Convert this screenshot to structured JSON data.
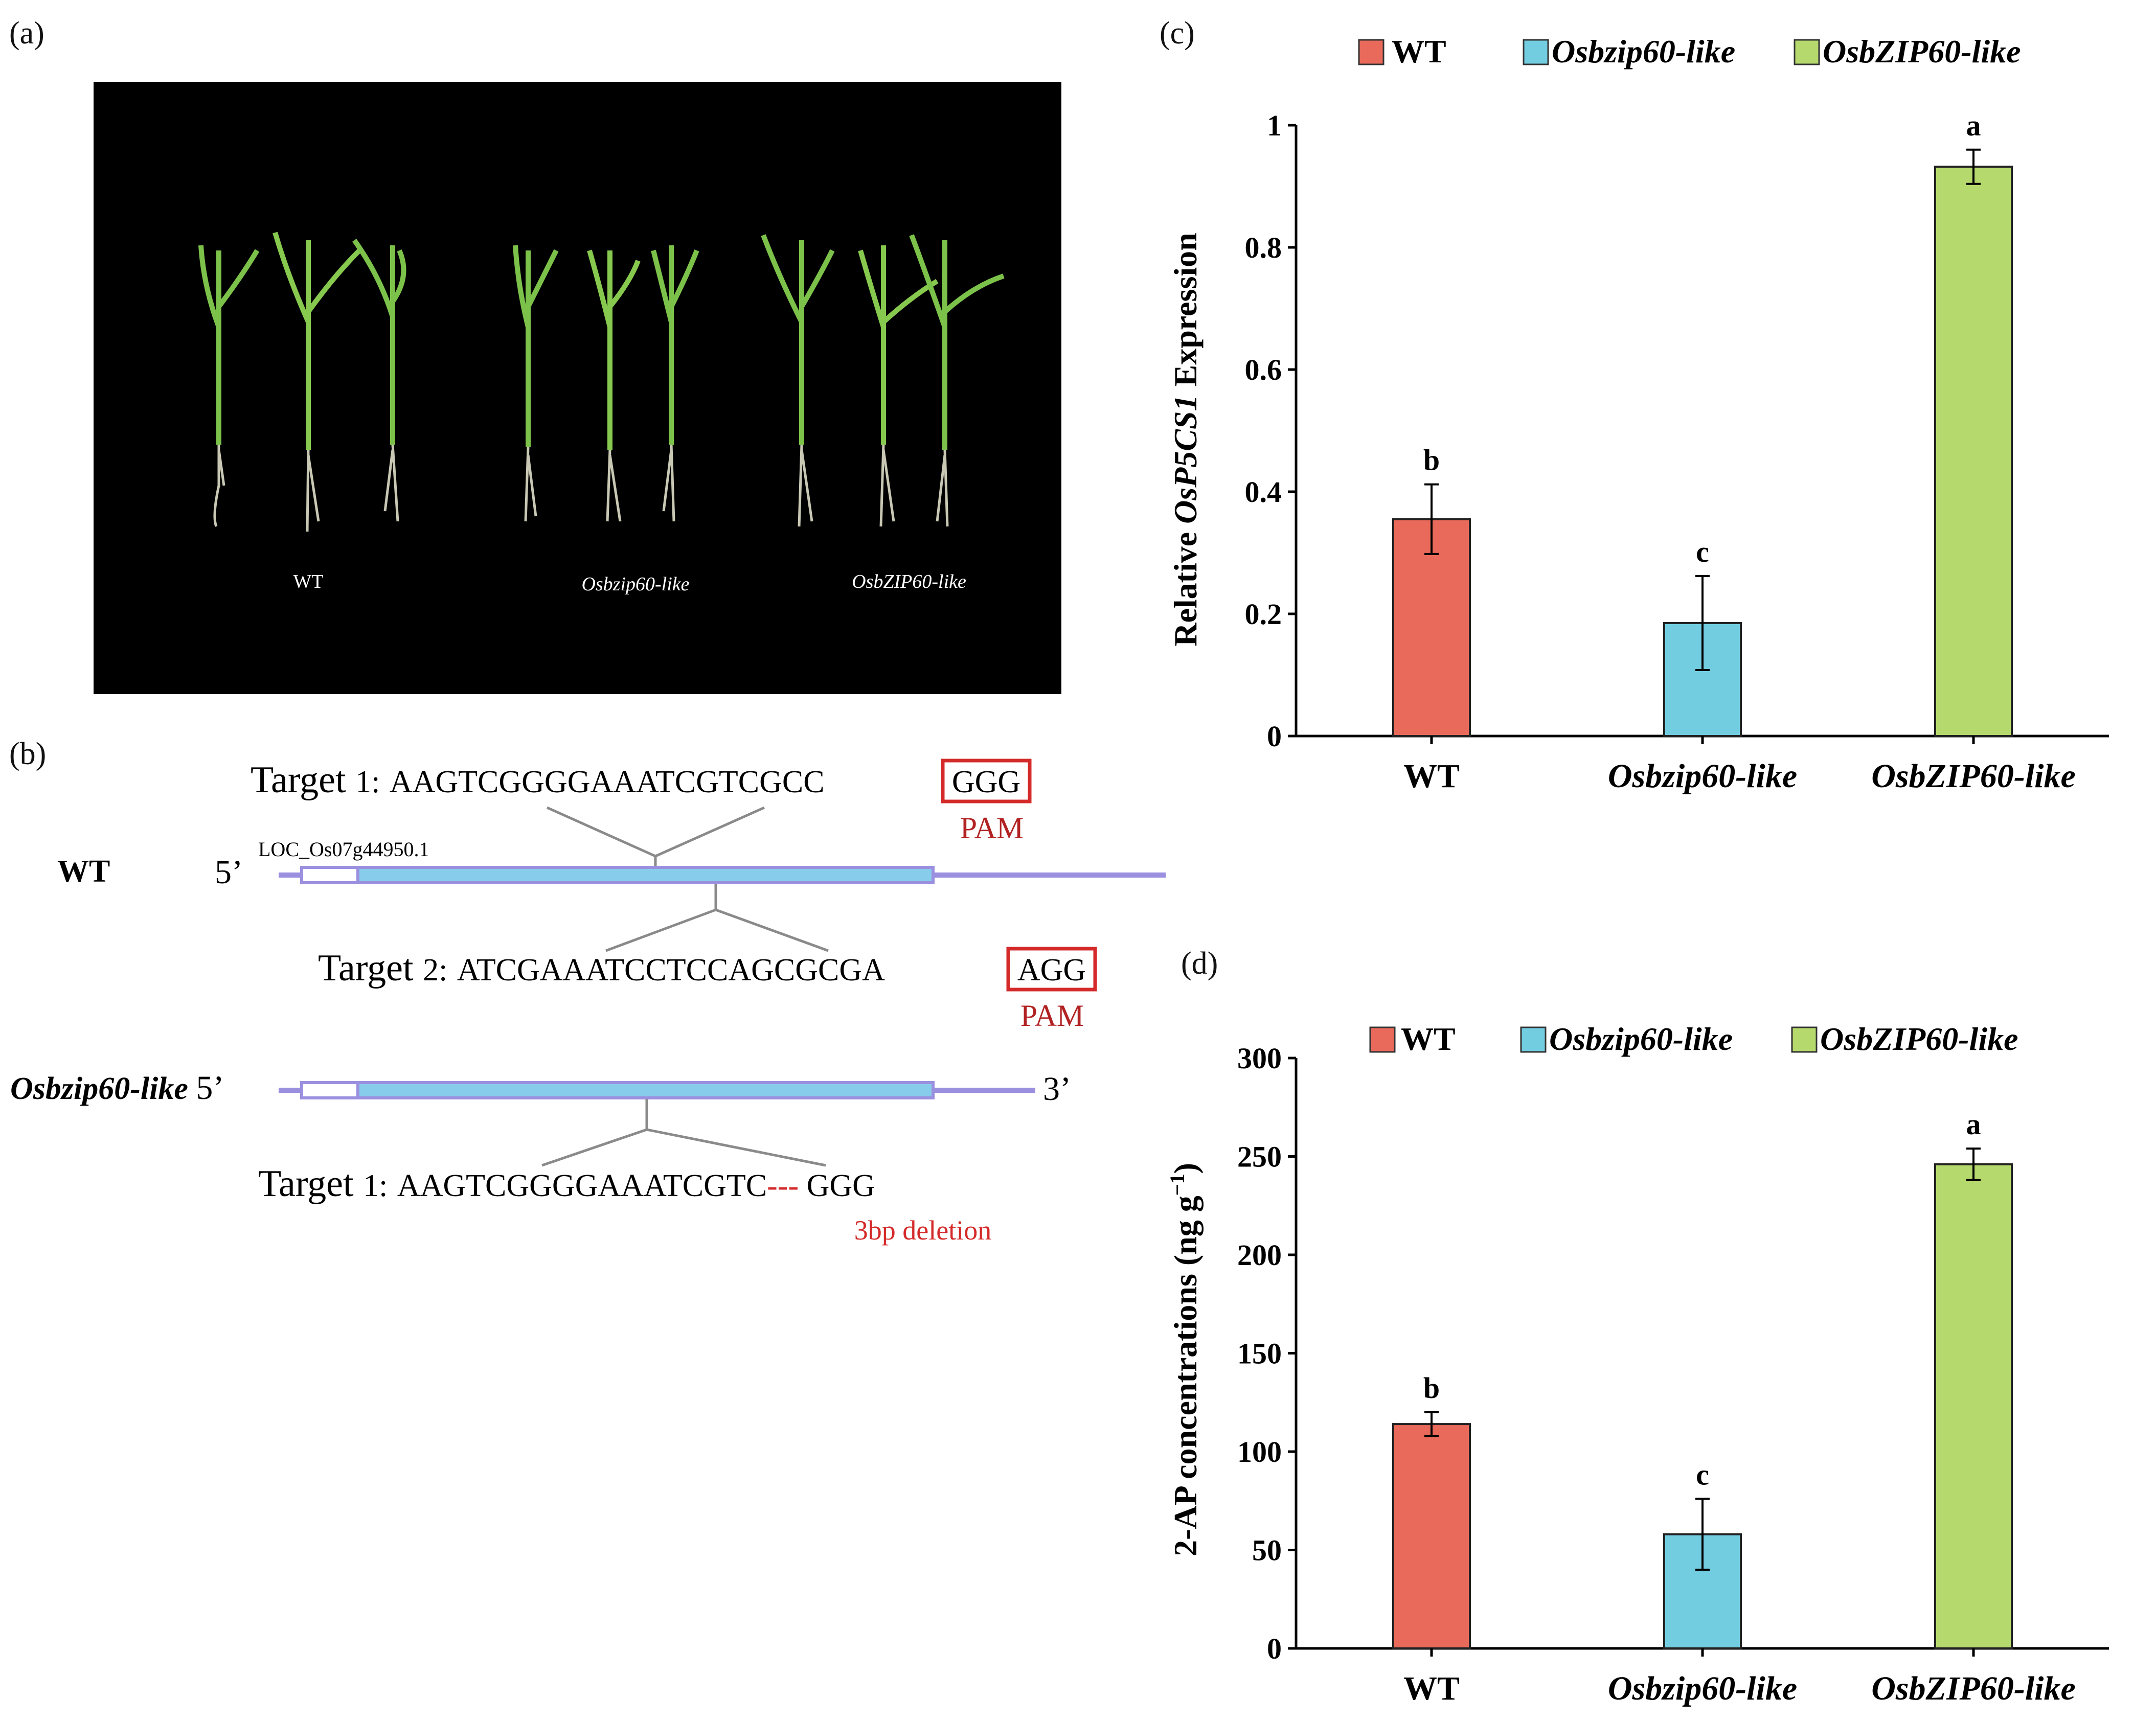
{
  "panels": {
    "a": "(a)",
    "b": "(b)",
    "c": "(c)",
    "d": "(d)"
  },
  "photo": {
    "labels": [
      "WT",
      "Osbzip60-like",
      "OsbZIP60-like"
    ]
  },
  "gene_diagram": {
    "wt_label": "WT",
    "mut_label": "Osbzip60-like",
    "five_prime": "5’",
    "three_prime": "3’",
    "locus": "LOC_Os07g44950.1",
    "target1_label": "Target",
    "target1_num": "1:",
    "target1_seq": "AAGTCGGGGAAATCGTCGCC",
    "target1_pam": "GGG",
    "target2_label": "Target",
    "target2_num": "2:",
    "target2_seq": "ATCGAAATCCTCCAGCGCGA",
    "target2_pam": "AGG",
    "pam_label": "PAM",
    "mut_target_label": "Target",
    "mut_target_num": "1:",
    "mut_target_seq": "AAGTCGGGGAAATCGTC",
    "mut_deletion": "---",
    "mut_target_tail": " GGG",
    "deletion_label": "3bp deletion",
    "colors": {
      "line": "#9b8fe0",
      "exon": "#87cdeb",
      "pam_box": "#d42a2a",
      "pam_text": "#b22222"
    }
  },
  "chart_data": [
    {
      "type": "bar",
      "title": "",
      "categories": [
        "WT",
        "Osbzip60-like",
        "OsbZIP60-like"
      ],
      "values": [
        0.355,
        0.185,
        0.932
      ],
      "errors": [
        0.057,
        0.077,
        0.028
      ],
      "significance": [
        "b",
        "c",
        "a"
      ],
      "colors": [
        "#e96a5b",
        "#72cde1",
        "#b5d96d"
      ],
      "legend": [
        "WT",
        "Osbzip60-like",
        "OsbZIP60-like"
      ],
      "legend_position": "top",
      "xlabel": "",
      "ylabel_prefix": "Relative ",
      "ylabel_italic": "OsP5CS1",
      "ylabel_suffix": " Expression",
      "ylim": [
        0,
        1
      ],
      "yticks": [
        0,
        0.2,
        0.4,
        0.6,
        0.8,
        1
      ],
      "ytick_labels": [
        "0",
        "0.2",
        "0.4",
        "0.6",
        "0.8",
        "1"
      ],
      "grid": false
    },
    {
      "type": "bar",
      "title": "",
      "categories": [
        "WT",
        "Osbzip60-like",
        "OsbZIP60-like"
      ],
      "values": [
        114,
        58,
        246
      ],
      "errors": [
        6,
        18,
        8
      ],
      "significance": [
        "b",
        "c",
        "a"
      ],
      "colors": [
        "#e96a5b",
        "#72cde1",
        "#b5d96d"
      ],
      "legend": [
        "WT",
        "Osbzip60-like",
        "OsbZIP60-like"
      ],
      "legend_position": "top",
      "xlabel": "",
      "ylabel_prefix": "2-AP concentrations (ng g",
      "ylabel_sup": "−1",
      "ylabel_suffix": ")",
      "ylim": [
        0,
        300
      ],
      "yticks": [
        0,
        50,
        100,
        150,
        200,
        250,
        300
      ],
      "ytick_labels": [
        "0",
        "50",
        "100",
        "150",
        "200",
        "250",
        "300"
      ],
      "grid": false
    }
  ]
}
